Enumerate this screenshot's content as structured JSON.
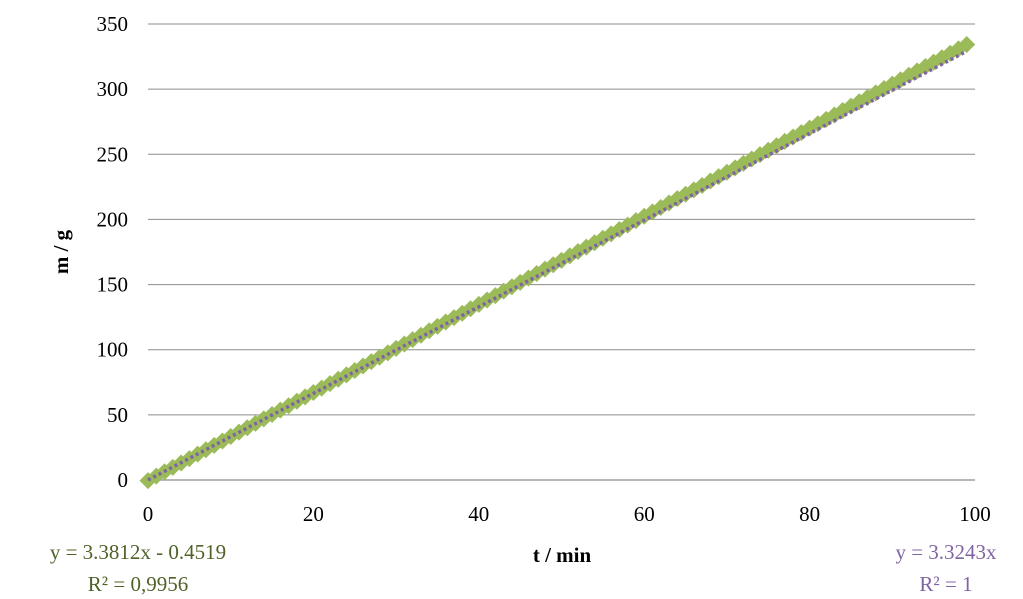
{
  "chart_data": {
    "type": "scatter",
    "title": "",
    "xlabel": "t / min",
    "ylabel": "m / g",
    "xlim": [
      0,
      100
    ],
    "ylim": [
      0,
      350
    ],
    "xticks": [
      "0",
      "20",
      "40",
      "60",
      "80",
      "100"
    ],
    "yticks": [
      "0",
      "50",
      "100",
      "150",
      "200",
      "250",
      "300",
      "350"
    ],
    "grid": "horizontal",
    "series": [
      {
        "marker": "diamond",
        "color": "#9bbb59",
        "x_start": 0,
        "x_end": 99,
        "x_step": 1,
        "trendline": {
          "slope": 3.3812,
          "intercept": -0.4519,
          "color": "#9bbb59"
        },
        "equation": "y = 3.3812x - 0.4519",
        "r_squared": "R² = 0,9956",
        "text_color": "#4f6228"
      },
      {
        "marker": "none",
        "color": "#8064a2",
        "line_style": "dotted",
        "x_start": 0,
        "x_end": 99,
        "trendline": {
          "slope": 3.3243,
          "intercept": 0,
          "color": "#8064a2"
        },
        "equation": "y = 3.3243x",
        "r_squared": "R² = 1",
        "text_color": "#8064a2"
      }
    ]
  }
}
